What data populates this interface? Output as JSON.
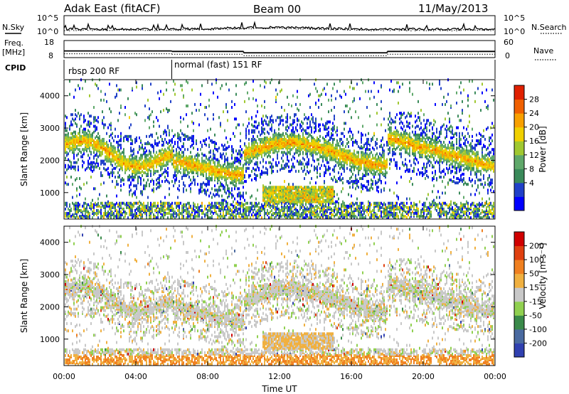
{
  "header": {
    "station": "Adak East (fitACF)",
    "beam": "Beam 00",
    "date": "11/May/2013"
  },
  "side_labels": {
    "nsky": "N.Sky",
    "freq": "Freq.",
    "freq_unit": "[MHz]",
    "cpid": "CPID",
    "nsearch": "N.Search",
    "nave": "Nave"
  },
  "noise_panel": {
    "left_ticks": [
      "10^5",
      "10^0"
    ],
    "right_ticks": [
      "10^5",
      "10^0"
    ]
  },
  "freq_panel": {
    "left_ticks": [
      "18",
      "8"
    ],
    "right_ticks": [
      "60",
      "0"
    ],
    "freq_segments": [
      {
        "start_h": 0,
        "end_h": 6,
        "value": 11.8
      },
      {
        "start_h": 6,
        "end_h": 10,
        "value": 11.5
      },
      {
        "start_h": 10,
        "end_h": 18,
        "value": 10.6
      },
      {
        "start_h": 18,
        "end_h": 24,
        "value": 11.5
      }
    ]
  },
  "cpid": [
    {
      "label": "rbsp 200 RF",
      "start_h": 0,
      "end_h": 6
    },
    {
      "label": "normal (fast) 151 RF",
      "start_h": 6,
      "end_h": 24
    }
  ],
  "chart_data": [
    {
      "type": "heatmap",
      "name": "power",
      "ylabel": "Slant Range [km]",
      "ylim": [
        180,
        4500
      ],
      "yticks": [
        "1000",
        "2000",
        "3000",
        "4000"
      ],
      "xlim": [
        0,
        24
      ],
      "colorbar": {
        "label": "Power [dB]",
        "ticks": [
          "28",
          "24",
          "20",
          "16",
          "12",
          "8",
          "4"
        ],
        "colors": [
          "#0000ff",
          "#2040c8",
          "#3a8a5a",
          "#5fa86a",
          "#a0c830",
          "#f0d000",
          "#f8a000",
          "#f06000",
          "#e02000"
        ]
      }
    },
    {
      "type": "heatmap",
      "name": "velocity",
      "ylabel": "Slant Range [km]",
      "ylim": [
        180,
        4500
      ],
      "yticks": [
        "1000",
        "2000",
        "3000",
        "4000"
      ],
      "xlim": [
        0,
        24
      ],
      "xticks": [
        "00:00",
        "04:00",
        "08:00",
        "12:00",
        "16:00",
        "20:00",
        "00:00"
      ],
      "xlabel": "Time UT",
      "colorbar": {
        "label": "Velocity [m s⁻¹]",
        "ticks": [
          "200",
          "100",
          "50",
          "15",
          "-15",
          "-50",
          "-100",
          "-200"
        ],
        "colors": [
          "#3040b0",
          "#4a6aa0",
          "#3a8a4a",
          "#90d050",
          "#c8c8c8",
          "#f0b040",
          "#f08020",
          "#e04010",
          "#d00000"
        ]
      }
    }
  ]
}
